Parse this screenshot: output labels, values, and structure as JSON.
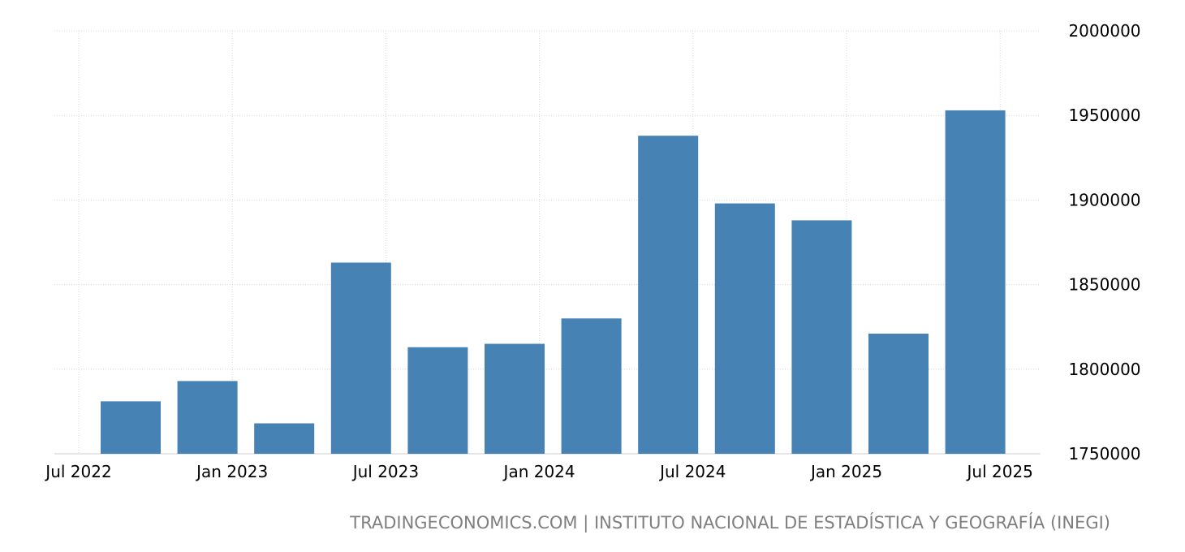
{
  "chart_data": {
    "type": "bar",
    "x_ticks": [
      "Jul 2022",
      "Jan 2023",
      "Jul 2023",
      "Jan 2024",
      "Jul 2024",
      "Jan 2025",
      "Jul 2025"
    ],
    "values": [
      1781000,
      1793000,
      1768000,
      1863000,
      1813000,
      1815000,
      1830000,
      1938000,
      1898000,
      1888000,
      1821000,
      1953000
    ],
    "y_ticks": [
      "1750000",
      "1800000",
      "1850000",
      "1900000",
      "1950000",
      "2000000"
    ],
    "ylim": [
      1750000,
      2000000
    ],
    "bar_color": "#4682b4",
    "grid": true,
    "y_axis_side": "right"
  },
  "footer": {
    "source": "TRADINGECONOMICS.COM | INSTITUTO NACIONAL DE ESTADÍSTICA Y GEOGRAFÍA (INEGI)"
  }
}
